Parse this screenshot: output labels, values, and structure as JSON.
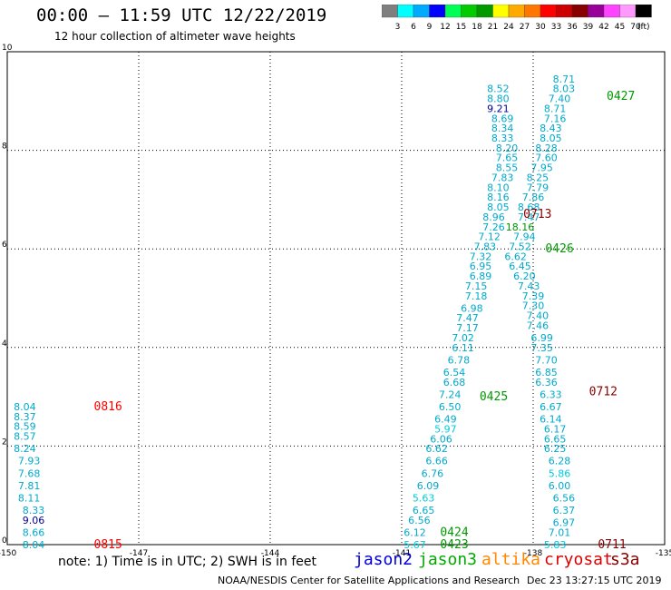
{
  "title": "00:00 – 11:59 UTC 12/22/2019",
  "subtitle": "12 hour collection of altimeter wave heights",
  "colorbar": {
    "colors": [
      "#7f7f7f",
      "#00ffff",
      "#00aaff",
      "#0000ff",
      "#00ff55",
      "#00cc00",
      "#009900",
      "#ffff00",
      "#ffaa00",
      "#ff7700",
      "#ff0000",
      "#cc0000",
      "#880000",
      "#990099",
      "#ff44ff",
      "#ff99ff",
      "#000000"
    ],
    "labels": [
      "3",
      "6",
      "9",
      "12",
      "15",
      "18",
      "21",
      "24",
      "27",
      "30",
      "33",
      "36",
      "39",
      "42",
      "45",
      "70",
      "(ft)"
    ]
  },
  "axes": {
    "x_ticks": [
      "-150",
      "-147",
      "-144",
      "-141",
      "-138",
      "-135"
    ],
    "y_ticks": [
      "0",
      "2",
      "4",
      "6",
      "8",
      "10"
    ]
  },
  "note": "note:  1) Time is in UTC;  2) SWH is in feet",
  "legend": [
    {
      "label": "jason2",
      "color": "#0000dd"
    },
    {
      "label": "jason3",
      "color": "#00aa00"
    },
    {
      "label": "altika",
      "color": "#ff8800"
    },
    {
      "label": "cryosat",
      "color": "#dd0000"
    },
    {
      "label": "s3a",
      "color": "#880000"
    }
  ],
  "footer_left": "NOAA/NESDIS Center for Satellite Applications and Research",
  "footer_right": "Dec 23 13:27:15 UTC 2019",
  "chart_data": {
    "type": "scatter",
    "xlim": [
      -150,
      -135
    ],
    "ylim": [
      0,
      10
    ],
    "grid": true,
    "passes": [
      {
        "label": "0815",
        "satellite": "cryosat",
        "color": "#ff0000",
        "x": -147.7,
        "y": 0.0
      },
      {
        "label": "0816",
        "satellite": "cryosat",
        "color": "#ff0000",
        "x": -147.7,
        "y": 2.8
      },
      {
        "label": "0423",
        "satellite": "jason3",
        "color": "#009900",
        "x": -139.8,
        "y": 0.0
      },
      {
        "label": "0424",
        "satellite": "jason3",
        "color": "#009900",
        "x": -139.8,
        "y": 0.25
      },
      {
        "label": "0425",
        "satellite": "jason3",
        "color": "#009900",
        "x": -138.9,
        "y": 3.0
      },
      {
        "label": "0426",
        "satellite": "jason3",
        "color": "#009900",
        "x": -137.4,
        "y": 6.0
      },
      {
        "label": "0427",
        "satellite": "jason3",
        "color": "#009900",
        "x": -136.0,
        "y": 9.1
      },
      {
        "label": "0711",
        "satellite": "s3a",
        "color": "#880000",
        "x": -136.2,
        "y": 0.0
      },
      {
        "label": "0712",
        "satellite": "s3a",
        "color": "#880000",
        "x": -136.4,
        "y": 3.1
      },
      {
        "label": "0713",
        "satellite": "s3a",
        "color": "#880000",
        "x": -137.9,
        "y": 6.7
      }
    ],
    "tracks": [
      {
        "name": "0815-0816",
        "values": [
          {
            "x": -149.6,
            "y": 2.8,
            "v": "8.04"
          },
          {
            "x": -149.6,
            "y": 2.6,
            "v": "8.37"
          },
          {
            "x": -149.6,
            "y": 2.4,
            "v": "8.59"
          },
          {
            "x": -149.6,
            "y": 2.2,
            "v": "8.57"
          },
          {
            "x": -149.6,
            "y": 1.95,
            "v": "8.24"
          },
          {
            "x": -149.5,
            "y": 1.7,
            "v": "7.93"
          },
          {
            "x": -149.5,
            "y": 1.45,
            "v": "7.68"
          },
          {
            "x": -149.5,
            "y": 1.2,
            "v": "7.81"
          },
          {
            "x": -149.5,
            "y": 0.95,
            "v": "8.11"
          },
          {
            "x": -149.4,
            "y": 0.7,
            "v": "8.33"
          },
          {
            "x": -149.4,
            "y": 0.5,
            "v": "9.06"
          },
          {
            "x": -149.4,
            "y": 0.25,
            "v": "8.66"
          },
          {
            "x": -149.4,
            "y": 0.0,
            "v": "8.04"
          }
        ]
      },
      {
        "name": "0423-0425",
        "values": [
          {
            "x": -140.7,
            "y": 0.0,
            "v": "5.67"
          },
          {
            "x": -140.7,
            "y": 0.25,
            "v": "6.12"
          },
          {
            "x": -140.6,
            "y": 0.5,
            "v": "6.56"
          },
          {
            "x": -140.5,
            "y": 0.7,
            "v": "6.65"
          },
          {
            "x": -140.5,
            "y": 0.95,
            "v": "5.63"
          },
          {
            "x": -140.4,
            "y": 1.2,
            "v": "6.09"
          },
          {
            "x": -140.3,
            "y": 1.45,
            "v": "6.76"
          },
          {
            "x": -140.2,
            "y": 1.7,
            "v": "6.66"
          },
          {
            "x": -140.2,
            "y": 1.95,
            "v": "6.62"
          },
          {
            "x": -140.1,
            "y": 2.15,
            "v": "6.06"
          },
          {
            "x": -140.0,
            "y": 2.35,
            "v": "5.97"
          },
          {
            "x": -140.0,
            "y": 2.55,
            "v": "6.49"
          },
          {
            "x": -139.9,
            "y": 2.8,
            "v": "6.50"
          },
          {
            "x": -139.9,
            "y": 3.05,
            "v": "7.24"
          },
          {
            "x": -139.8,
            "y": 3.3,
            "v": "6.68"
          },
          {
            "x": -139.8,
            "y": 3.5,
            "v": "6.54"
          },
          {
            "x": -139.7,
            "y": 3.75,
            "v": "6.78"
          },
          {
            "x": -139.6,
            "y": 4.0,
            "v": "6.11"
          },
          {
            "x": -139.6,
            "y": 4.2,
            "v": "7.02"
          },
          {
            "x": -139.5,
            "y": 4.4,
            "v": "7.17"
          },
          {
            "x": -139.5,
            "y": 4.6,
            "v": "7.47"
          },
          {
            "x": -139.4,
            "y": 4.8,
            "v": "6.98"
          },
          {
            "x": -139.3,
            "y": 5.05,
            "v": "7.18"
          },
          {
            "x": -139.3,
            "y": 5.25,
            "v": "7.15"
          },
          {
            "x": -139.2,
            "y": 5.45,
            "v": "6.89"
          },
          {
            "x": -139.2,
            "y": 5.65,
            "v": "6.95"
          }
        ]
      },
      {
        "name": "0425-0427",
        "values": [
          {
            "x": -139.2,
            "y": 5.85,
            "v": "7.32"
          },
          {
            "x": -139.1,
            "y": 6.05,
            "v": "7.83"
          },
          {
            "x": -139.0,
            "y": 6.25,
            "v": "7.12"
          },
          {
            "x": -138.9,
            "y": 6.45,
            "v": "7.26"
          },
          {
            "x": -138.9,
            "y": 6.65,
            "v": "8.96"
          },
          {
            "x": -138.8,
            "y": 6.85,
            "v": "8.05"
          },
          {
            "x": -138.8,
            "y": 7.05,
            "v": "8.16"
          },
          {
            "x": -138.8,
            "y": 7.25,
            "v": "8.10"
          },
          {
            "x": -138.7,
            "y": 7.45,
            "v": "7.83"
          },
          {
            "x": -138.6,
            "y": 7.65,
            "v": "8.55"
          },
          {
            "x": -138.6,
            "y": 7.85,
            "v": "7.65"
          },
          {
            "x": -138.6,
            "y": 8.05,
            "v": "8.20"
          },
          {
            "x": -138.7,
            "y": 8.25,
            "v": "8.33"
          },
          {
            "x": -138.7,
            "y": 8.45,
            "v": "8.34"
          },
          {
            "x": -138.7,
            "y": 8.65,
            "v": "8.69"
          },
          {
            "x": -138.8,
            "y": 8.85,
            "v": "9.21"
          },
          {
            "x": -138.8,
            "y": 9.05,
            "v": "8.80"
          },
          {
            "x": -138.8,
            "y": 9.25,
            "v": "8.52"
          }
        ]
      },
      {
        "name": "0711-0713",
        "values": [
          {
            "x": -137.5,
            "y": 0.0,
            "v": "5.83"
          },
          {
            "x": -137.4,
            "y": 0.25,
            "v": "7.01"
          },
          {
            "x": -137.3,
            "y": 0.45,
            "v": "6.97"
          },
          {
            "x": -137.3,
            "y": 0.7,
            "v": "6.37"
          },
          {
            "x": -137.3,
            "y": 0.95,
            "v": "6.56"
          },
          {
            "x": -137.4,
            "y": 1.2,
            "v": "6.00"
          },
          {
            "x": -137.4,
            "y": 1.45,
            "v": "5.86"
          },
          {
            "x": -137.4,
            "y": 1.7,
            "v": "6.28"
          },
          {
            "x": -137.5,
            "y": 1.95,
            "v": "6.25"
          },
          {
            "x": -137.5,
            "y": 2.15,
            "v": "6.65"
          },
          {
            "x": -137.5,
            "y": 2.35,
            "v": "6.17"
          },
          {
            "x": -137.6,
            "y": 2.55,
            "v": "6.14"
          },
          {
            "x": -137.6,
            "y": 2.8,
            "v": "6.67"
          },
          {
            "x": -137.6,
            "y": 3.05,
            "v": "6.33"
          },
          {
            "x": -137.7,
            "y": 3.3,
            "v": "6.36"
          },
          {
            "x": -137.7,
            "y": 3.5,
            "v": "6.85"
          },
          {
            "x": -137.7,
            "y": 3.75,
            "v": "7.70"
          },
          {
            "x": -137.8,
            "y": 4.0,
            "v": "7.35"
          },
          {
            "x": -137.8,
            "y": 4.2,
            "v": "6.99"
          },
          {
            "x": -137.9,
            "y": 4.45,
            "v": "7.46"
          },
          {
            "x": -137.9,
            "y": 4.65,
            "v": "7.40"
          },
          {
            "x": -138.0,
            "y": 4.85,
            "v": "7.30"
          },
          {
            "x": -138.0,
            "y": 5.05,
            "v": "7.39"
          },
          {
            "x": -138.1,
            "y": 5.25,
            "v": "7.43"
          },
          {
            "x": -138.2,
            "y": 5.45,
            "v": "6.20"
          },
          {
            "x": -138.3,
            "y": 5.65,
            "v": "6.45"
          },
          {
            "x": -138.4,
            "y": 5.85,
            "v": "6.62"
          },
          {
            "x": -138.3,
            "y": 6.05,
            "v": "7.52"
          },
          {
            "x": -138.2,
            "y": 6.25,
            "v": "7.94"
          },
          {
            "x": -138.3,
            "y": 6.45,
            "v": "18.16"
          }
        ]
      },
      {
        "name": "0713-0427",
        "values": [
          {
            "x": -138.1,
            "y": 6.65,
            "v": "7.47"
          },
          {
            "x": -138.1,
            "y": 6.85,
            "v": "8.68"
          },
          {
            "x": -138.0,
            "y": 7.05,
            "v": "7.86"
          },
          {
            "x": -137.9,
            "y": 7.25,
            "v": "7.79"
          },
          {
            "x": -137.9,
            "y": 7.45,
            "v": "8.25"
          },
          {
            "x": -137.8,
            "y": 7.65,
            "v": "7.95"
          },
          {
            "x": -137.7,
            "y": 7.85,
            "v": "7.60"
          },
          {
            "x": -137.7,
            "y": 8.05,
            "v": "8.28"
          },
          {
            "x": -137.6,
            "y": 8.25,
            "v": "8.05"
          },
          {
            "x": -137.6,
            "y": 8.45,
            "v": "8.43"
          },
          {
            "x": -137.5,
            "y": 8.65,
            "v": "7.16"
          },
          {
            "x": -137.5,
            "y": 8.85,
            "v": "8.71"
          },
          {
            "x": -137.4,
            "y": 9.05,
            "v": "7.40"
          },
          {
            "x": -137.3,
            "y": 9.25,
            "v": "8.03"
          },
          {
            "x": -137.3,
            "y": 9.45,
            "v": "8.71"
          }
        ]
      }
    ]
  }
}
